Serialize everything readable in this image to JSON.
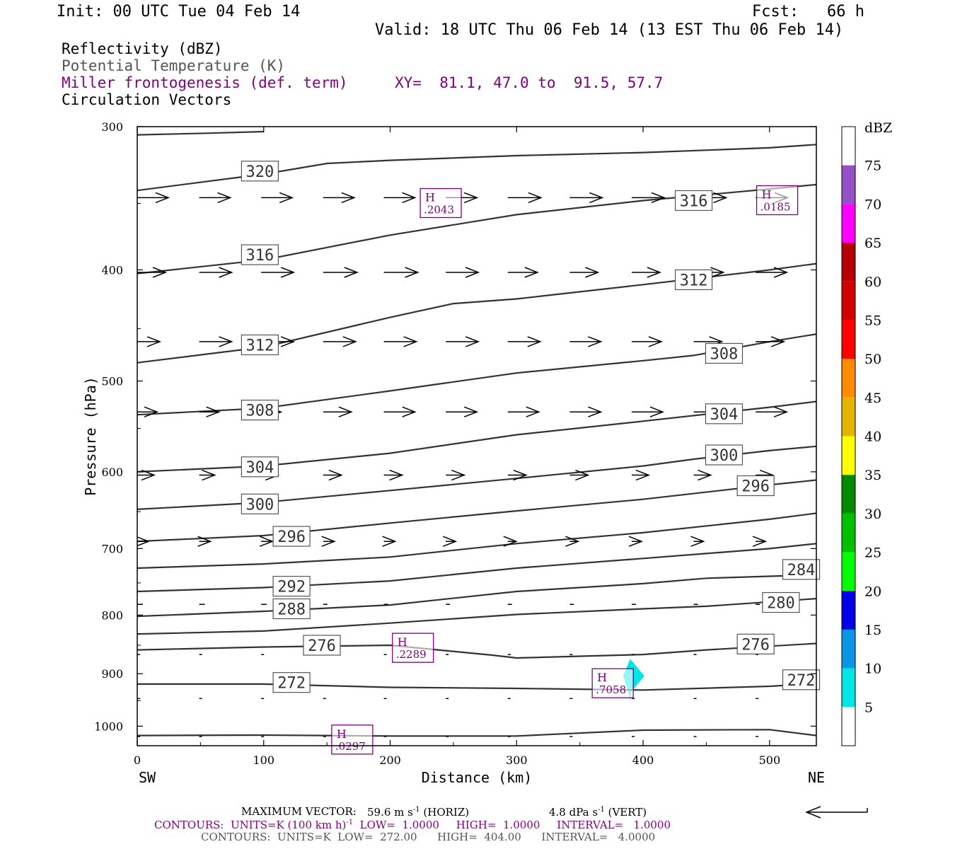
{
  "header": {
    "init": "Init: 00 UTC Tue 04 Feb 14",
    "fcst": "Fcst:   66 h",
    "valid": "Valid: 18 UTC Thu 06 Feb 14 (13 EST Thu 06 Feb 14)"
  },
  "fields": {
    "reflectivity": "Reflectivity (dBZ)",
    "theta": "Potential Temperature (K)",
    "frontogenesis": "Miller frontogenesis (def. term)",
    "xy": "XY=  81.1, 47.0 to  91.5, 57.7",
    "circulation": "Circulation Vectors"
  },
  "colors": {
    "purple": "#800080",
    "contour": "#333333",
    "reflectivity_band": "#00e5e5"
  },
  "colorbar": {
    "unit": "dBZ",
    "labels": [
      "5",
      "10",
      "15",
      "20",
      "25",
      "30",
      "35",
      "40",
      "45",
      "50",
      "55",
      "60",
      "65",
      "70",
      "75"
    ],
    "colors": [
      "#ffffff",
      "#00e6e6",
      "#0a96e6",
      "#0000e6",
      "#00ff00",
      "#00c000",
      "#008a00",
      "#ffff00",
      "#e6b400",
      "#ff8c00",
      "#ff0000",
      "#d20000",
      "#b40000",
      "#ff00ff",
      "#9650c8",
      "#ffffff"
    ]
  },
  "footer": {
    "maxvec_label": "MAXIMUM VECTOR:",
    "maxvec_horiz": "59.6 m s",
    "maxvec_horiz_unit": "(HORIZ)",
    "maxvec_vert": "4.8 dPa s",
    "maxvec_vert_unit": "(VERT)",
    "exp": "-1",
    "cont1_a": "CONTOURS:  UNITS=K (100 km h)",
    "cont1_b": "LOW=  1.0000     HIGH=  1.0000     INTERVAL=   1.0000",
    "cont2": "CONTOURS:  UNITS=K  LOW=  272.00      HIGH=  404.00      INTERVAL=   4.0000"
  },
  "chart_data": {
    "type": "line",
    "xlabel": "Distance (km)",
    "ylabel": "Pressure (hPa)",
    "xlim": [
      0,
      537
    ],
    "ylim": [
      1040,
      300
    ],
    "yscale": "log",
    "x_ticks": [
      "0",
      "100",
      "200",
      "300",
      "400",
      "500"
    ],
    "y_ticks": [
      "300",
      "400",
      "500",
      "600",
      "700",
      "800",
      "900",
      "1000"
    ],
    "x_endpoints": {
      "left": "SW",
      "right": "NE"
    },
    "theta_contours": [
      {
        "label": "320",
        "x": [
          0,
          55,
          100
        ],
        "p": [
          305,
          304,
          303
        ],
        "label_at": [
          97,
          328
        ]
      },
      {
        "label": "",
        "x": [
          0,
          100,
          150,
          200,
          300,
          400,
          500,
          537
        ],
        "p": [
          341,
          330,
          323,
          321,
          318,
          316,
          313,
          311
        ],
        "label_at": null
      },
      {
        "label": "316",
        "x": [
          0,
          100,
          200,
          300,
          400,
          500,
          537
        ],
        "p": [
          403,
          392,
          373,
          358,
          348,
          340,
          337
        ],
        "label_at": [
          97,
          388
        ]
      },
      {
        "label": "312",
        "x": [
          0,
          100,
          200,
          250,
          300,
          400,
          500,
          537
        ],
        "p": [
          482,
          467,
          440,
          428,
          424,
          412,
          400,
          395
        ],
        "label_at": [
          97,
          465
        ]
      },
      {
        "label": "308",
        "x": [
          0,
          100,
          200,
          300,
          400,
          440,
          500,
          537
        ],
        "p": [
          535,
          528,
          510,
          492,
          480,
          475,
          462,
          455
        ],
        "label_at": [
          97,
          530
        ]
      },
      {
        "label": "304",
        "x": [
          0,
          100,
          200,
          300,
          400,
          500,
          537
        ],
        "p": [
          600,
          593,
          578,
          557,
          542,
          527,
          521
        ],
        "label_at": [
          97,
          594
        ]
      },
      {
        "label": "300",
        "x": [
          0,
          100,
          200,
          300,
          400,
          440,
          500,
          537
        ],
        "p": [
          647,
          638,
          623,
          608,
          593,
          585,
          575,
          570
        ],
        "label_at": [
          97,
          640
        ]
      },
      {
        "label": "296",
        "x": [
          0,
          100,
          200,
          300,
          400,
          500,
          537
        ],
        "p": [
          690,
          682,
          665,
          649,
          634,
          616,
          610
        ],
        "label_at": [
          122,
          683
        ]
      },
      {
        "label": "",
        "x": [
          0,
          100,
          200,
          300,
          400,
          500,
          537
        ],
        "p": [
          728,
          722,
          712,
          693,
          678,
          660,
          652
        ],
        "label_at": null
      },
      {
        "label": "292",
        "x": [
          0,
          100,
          200,
          300,
          400,
          500,
          537
        ],
        "p": [
          763,
          757,
          747,
          728,
          714,
          700,
          693
        ],
        "label_at": [
          122,
          755
        ]
      },
      {
        "label": "288",
        "x": [
          0,
          100,
          200,
          300,
          400,
          450,
          500,
          537
        ],
        "p": [
          802,
          794,
          784,
          763,
          751,
          743,
          740,
          738
        ],
        "label_at": [
          122,
          790
        ]
      },
      {
        "label": "284",
        "x": [
          0,
          100,
          200,
          300,
          400,
          450,
          537
        ],
        "p": [
          831,
          826,
          813,
          799,
          790,
          786,
          774
        ],
        "label_at": [
          525,
          730
        ]
      },
      {
        "label": "280",
        "x": [
          0,
          100,
          200,
          280,
          300,
          400,
          450,
          537
        ],
        "p": [
          858,
          853,
          850,
          867,
          872,
          866,
          858,
          847
        ],
        "label_at": [
          509,
          780
        ]
      },
      {
        "label": "276",
        "x": [
          0,
          100,
          200,
          300,
          400,
          500,
          537
        ],
        "p": [
          919,
          919,
          925,
          927,
          930,
          923,
          918
        ],
        "label_at": [
          146,
          850
        ]
      },
      {
        "label": "272",
        "x": [
          0,
          100,
          200,
          300,
          400,
          500,
          537
        ],
        "p": [
          1019,
          1018,
          1020,
          1020,
          1008,
          1007,
          1019
        ],
        "label_at": [
          122,
          916
        ]
      }
    ],
    "extra_labels": [
      {
        "label": "316",
        "at": [
          440,
          348
        ]
      },
      {
        "label": "312",
        "at": [
          440,
          408
        ]
      },
      {
        "label": "308",
        "at": [
          464,
          473
        ]
      },
      {
        "label": "304",
        "at": [
          464,
          534
        ]
      },
      {
        "label": "300",
        "at": [
          464,
          580
        ]
      },
      {
        "label": "296",
        "at": [
          489,
          617
        ]
      },
      {
        "label": "276",
        "at": [
          489,
          848
        ]
      },
      {
        "label": "272",
        "at": [
          525,
          911
        ]
      }
    ],
    "frontogenesis_maxima": [
      {
        "marker": "H",
        "value": ".2043",
        "x": 240,
        "p": 350
      },
      {
        "marker": "H",
        "value": ".0185",
        "x": 506,
        "p": 348
      },
      {
        "marker": "H",
        "value": ".2289",
        "x": 218,
        "p": 855
      },
      {
        "marker": "H",
        "value": ".7058",
        "x": 376,
        "p": 918
      },
      {
        "marker": "H",
        "value": ".0297",
        "x": 170,
        "p": 1028
      }
    ],
    "circulation_vector_rows": [
      {
        "p": 346,
        "lengths": [
          44,
          44,
          44,
          44,
          44,
          44,
          47,
          46,
          46,
          46,
          45
        ]
      },
      {
        "p": 402,
        "lengths": [
          40,
          46,
          46,
          48,
          48,
          46,
          42,
          40,
          40,
          42,
          44
        ]
      },
      {
        "p": 462,
        "lengths": [
          32,
          46,
          46,
          46,
          46,
          46,
          46,
          44,
          42,
          40,
          40
        ]
      },
      {
        "p": 532,
        "lengths": [
          28,
          28,
          28,
          40,
          44,
          44,
          44,
          44,
          44,
          42,
          44
        ]
      },
      {
        "p": 604,
        "lengths": [
          24,
          22,
          24,
          26,
          26,
          26,
          26,
          26,
          24,
          24,
          24
        ]
      },
      {
        "p": 690,
        "lengths": [
          16,
          16,
          16,
          16,
          16,
          14,
          12,
          12,
          14,
          14,
          14
        ]
      },
      {
        "p": 783,
        "lengths": [
          8,
          8,
          8,
          6,
          6,
          6,
          6,
          6,
          6,
          6,
          6
        ]
      },
      {
        "p": 866,
        "lengths": [
          4,
          4,
          4,
          4,
          4,
          4,
          4,
          4,
          4,
          4,
          4
        ]
      },
      {
        "p": 946,
        "lengths": [
          4,
          4,
          4,
          4,
          4,
          4,
          4,
          4,
          4,
          4,
          4
        ]
      },
      {
        "p": 1021,
        "lengths": [
          4,
          4,
          4,
          4,
          4,
          4,
          4,
          4,
          4,
          4,
          4
        ]
      }
    ],
    "reflectivity_areas": [
      {
        "dbz": 5,
        "shape": "diamond",
        "center": [
          392,
          917
        ]
      }
    ]
  }
}
